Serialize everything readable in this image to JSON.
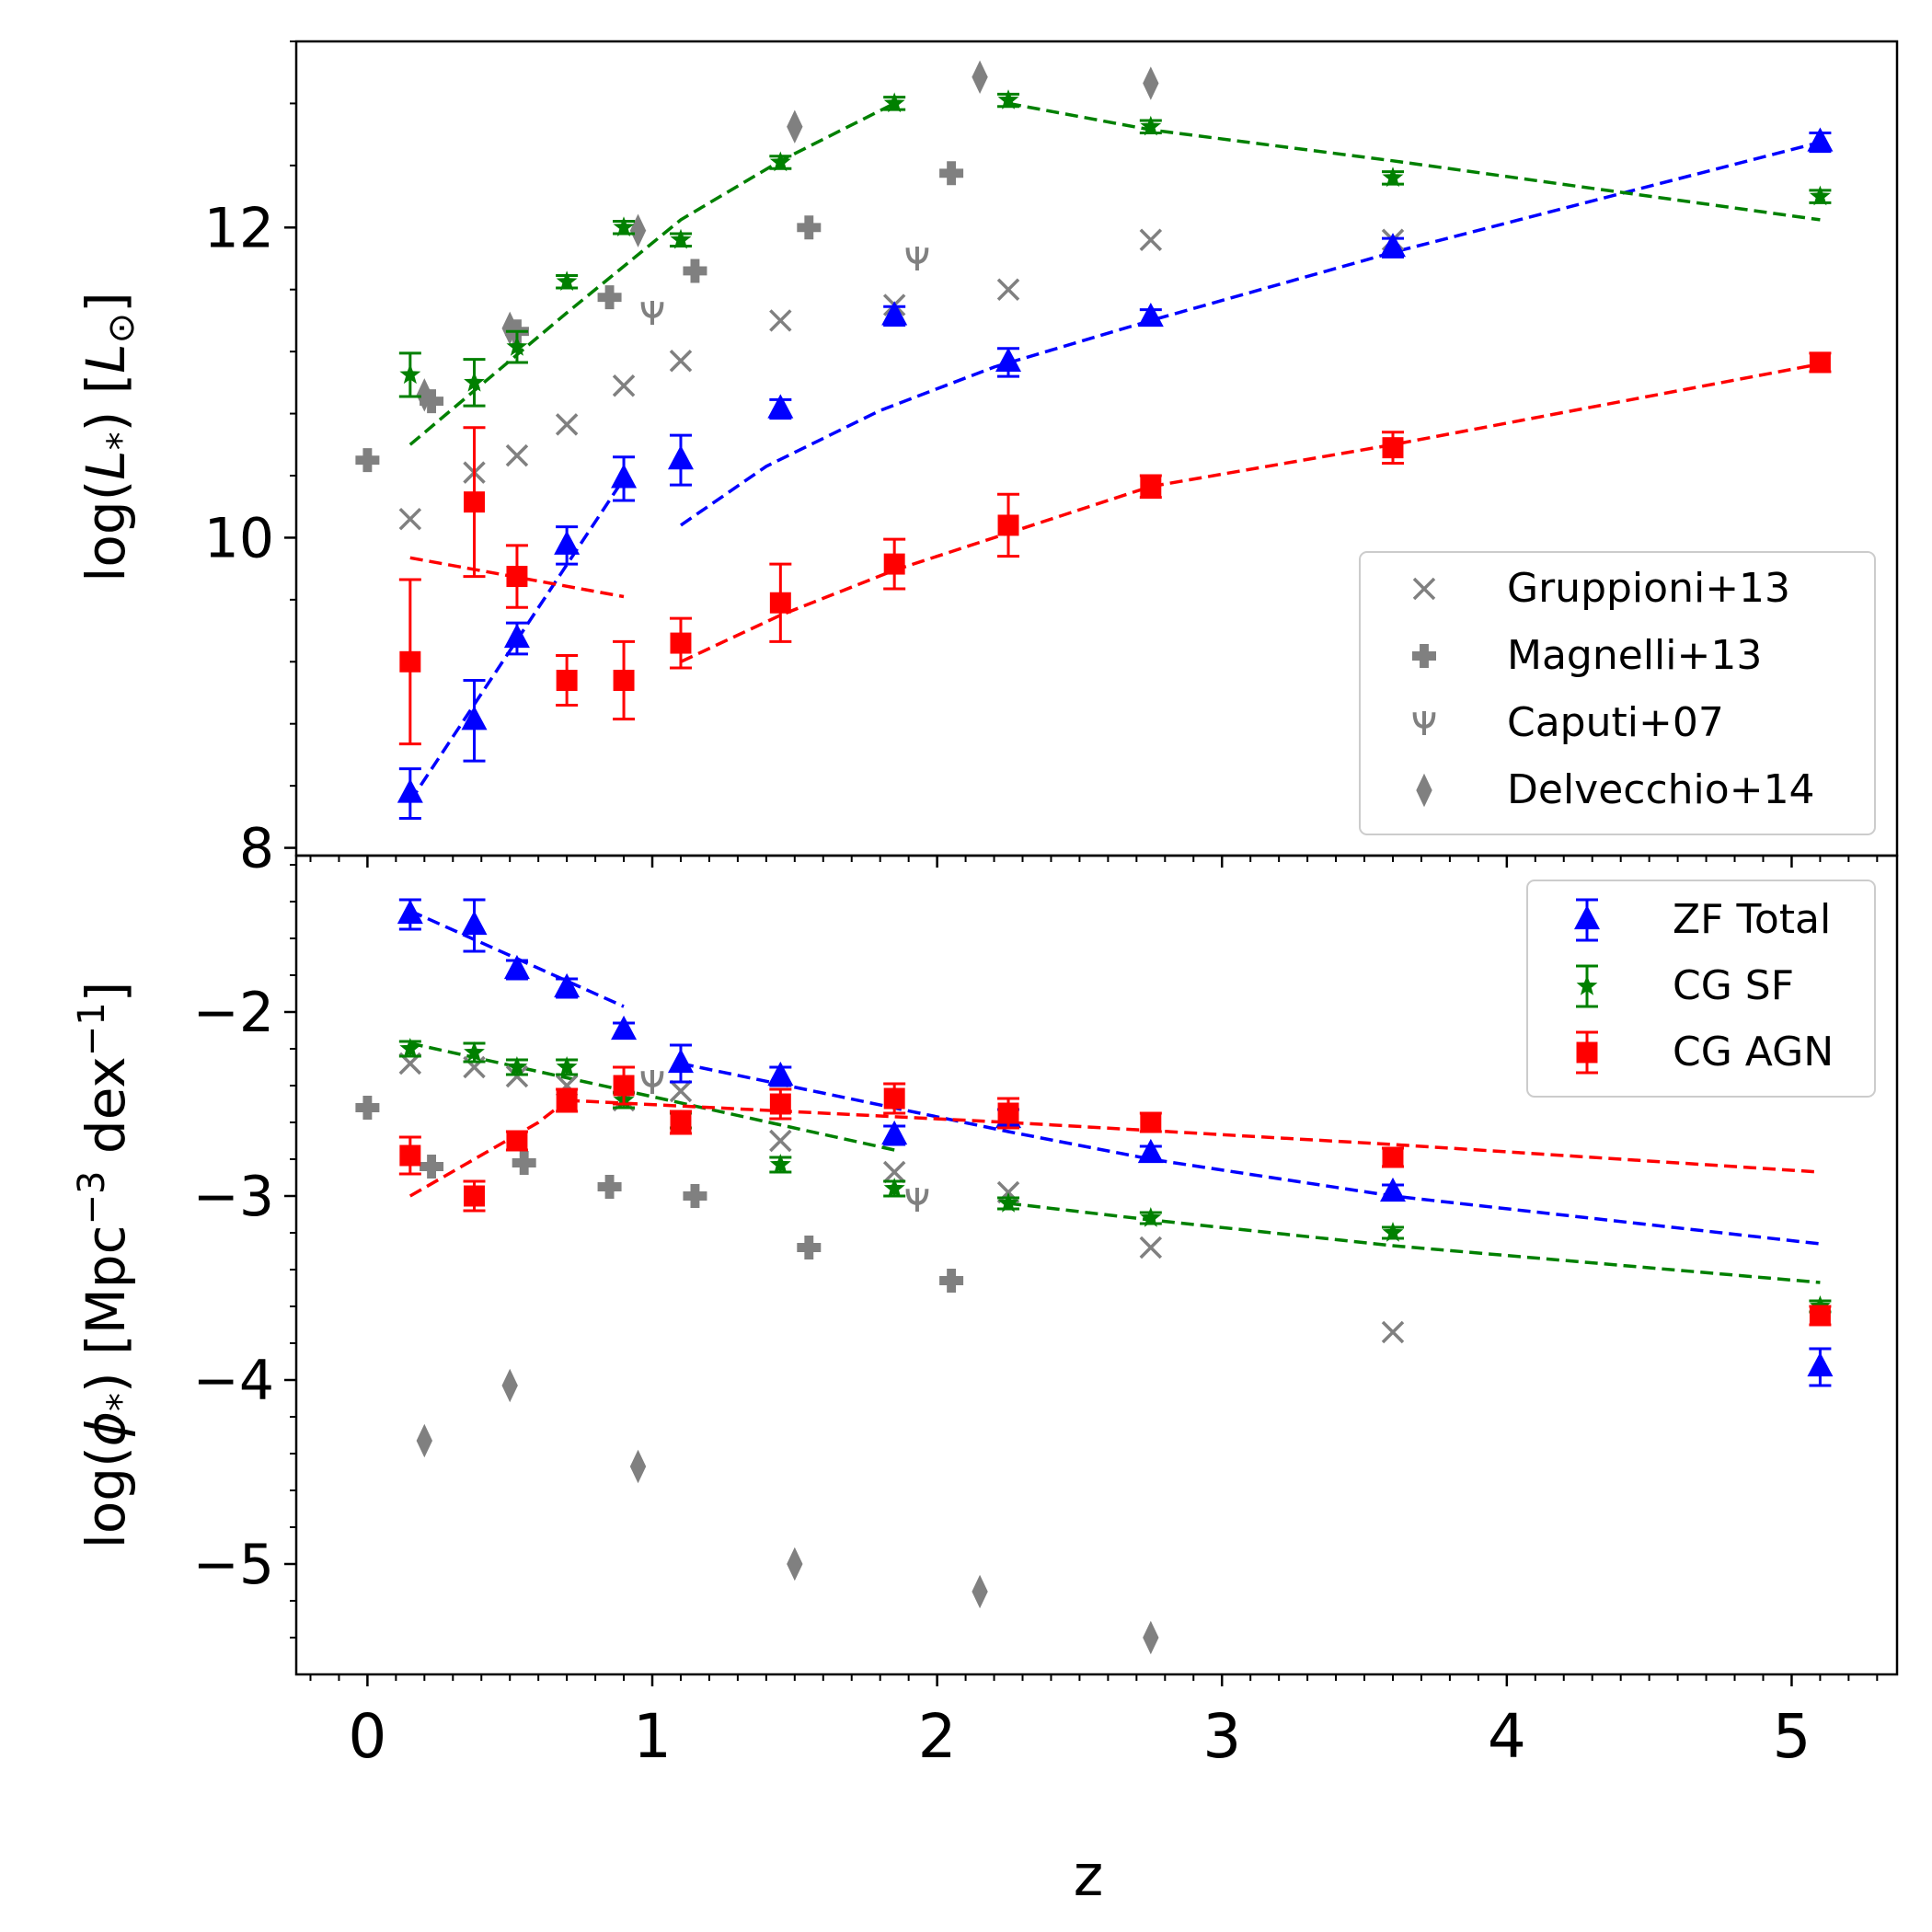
{
  "chart_data": [
    {
      "type": "scatter",
      "panel": "top",
      "xlabel": "",
      "ylabel_parts": [
        "log(",
        "L",
        "*",
        ") [",
        "L",
        "⊙",
        "]"
      ],
      "xlim": [
        -0.25,
        5.37
      ],
      "ylim": [
        7.95,
        13.2
      ],
      "yticks": [
        8,
        10,
        12
      ],
      "yticklabels": [
        "8",
        "10",
        "12"
      ],
      "legend": {
        "placement": "lower-right",
        "entries": [
          {
            "label": "Gruppioni+13",
            "marker": "x",
            "color": "#808080"
          },
          {
            "label": "Magnelli+13",
            "marker": "plus",
            "color": "#808080"
          },
          {
            "label": "Caputi+07",
            "marker": "psi",
            "color": "#808080"
          },
          {
            "label": "Delvecchio+14",
            "marker": "diamond",
            "color": "#808080"
          }
        ]
      },
      "series": [
        {
          "name": "Gruppioni+13",
          "marker": "x",
          "color": "#808080",
          "points": [
            [
              0.15,
              10.12
            ],
            [
              0.375,
              10.42
            ],
            [
              0.525,
              10.53
            ],
            [
              0.7,
              10.73
            ],
            [
              0.9,
              10.98
            ],
            [
              1.1,
              11.14
            ],
            [
              1.45,
              11.4
            ],
            [
              1.85,
              11.5
            ],
            [
              2.25,
              11.6
            ],
            [
              2.75,
              11.92
            ],
            [
              3.6,
              11.92
            ]
          ]
        },
        {
          "name": "Magnelli+13",
          "marker": "plus",
          "color": "#808080",
          "points": [
            [
              0.0,
              10.5
            ],
            [
              0.225,
              10.88
            ],
            [
              0.525,
              11.33
            ],
            [
              0.85,
              11.55
            ],
            [
              1.15,
              11.72
            ],
            [
              1.55,
              12.0
            ],
            [
              2.05,
              12.35
            ]
          ]
        },
        {
          "name": "Caputi+07",
          "marker": "psi",
          "color": "#808080",
          "points": [
            [
              1.0,
              11.45
            ],
            [
              1.93,
              11.8
            ]
          ]
        },
        {
          "name": "Delvecchio+14",
          "marker": "diamond",
          "color": "#808080",
          "points": [
            [
              0.2,
              10.92
            ],
            [
              0.5,
              11.35
            ],
            [
              0.95,
              11.98
            ],
            [
              1.5,
              12.65
            ],
            [
              2.15,
              12.97
            ],
            [
              2.75,
              12.93
            ]
          ]
        },
        {
          "name": "ZF Total",
          "marker": "triangle",
          "color": "#0000ff",
          "points": [
            [
              0.15,
              8.35,
              0.16
            ],
            [
              0.375,
              8.82,
              0.26
            ],
            [
              0.525,
              9.35,
              0.1
            ],
            [
              0.7,
              9.95,
              0.12
            ],
            [
              0.9,
              10.38,
              0.14
            ],
            [
              1.1,
              10.5,
              0.16
            ],
            [
              1.45,
              10.83,
              0.06
            ],
            [
              1.85,
              11.43,
              0.06
            ],
            [
              2.25,
              11.13,
              0.09
            ],
            [
              2.75,
              11.42,
              0.05
            ],
            [
              3.6,
              11.87,
              0.06
            ],
            [
              5.1,
              12.55,
              0.06
            ]
          ],
          "fits": [
            {
              "x": [
                0.15,
                0.9
              ],
              "y": [
                8.3,
                10.38
              ]
            },
            {
              "x": [
                1.1,
                1.4,
                1.8,
                2.2,
                2.75,
                3.6,
                5.1
              ],
              "y": [
                10.08,
                10.46,
                10.82,
                11.1,
                11.4,
                11.84,
                12.55
              ]
            }
          ]
        },
        {
          "name": "CG SF",
          "marker": "star",
          "color": "#008000",
          "points": [
            [
              0.15,
              11.05,
              0.14
            ],
            [
              0.375,
              11.0,
              0.15
            ],
            [
              0.525,
              11.23,
              0.1
            ],
            [
              0.7,
              11.65,
              0.04
            ],
            [
              0.9,
              12.0,
              0.04
            ],
            [
              1.1,
              11.92,
              0.04
            ],
            [
              1.45,
              12.42,
              0.04
            ],
            [
              1.85,
              12.8,
              0.04
            ],
            [
              2.25,
              12.82,
              0.04
            ],
            [
              2.75,
              12.65,
              0.04
            ],
            [
              3.6,
              12.32,
              0.04
            ],
            [
              5.1,
              12.2,
              0.04
            ]
          ],
          "fits": [
            {
              "x": [
                0.15,
                0.7,
                1.1,
                1.45,
                1.85
              ],
              "y": [
                10.6,
                11.45,
                12.05,
                12.43,
                12.8
              ]
            },
            {
              "x": [
                2.25,
                2.75,
                3.6,
                5.1
              ],
              "y": [
                12.8,
                12.63,
                12.43,
                12.05
              ]
            }
          ]
        },
        {
          "name": "CG AGN",
          "marker": "square",
          "color": "#ff0000",
          "points": [
            [
              0.15,
              9.2,
              0.53
            ],
            [
              0.375,
              10.23,
              0.48
            ],
            [
              0.525,
              9.75,
              0.2
            ],
            [
              0.7,
              9.08,
              0.16
            ],
            [
              0.9,
              9.08,
              0.25
            ],
            [
              1.1,
              9.32,
              0.16
            ],
            [
              1.45,
              9.58,
              0.25
            ],
            [
              1.85,
              9.83,
              0.16
            ],
            [
              2.25,
              10.08,
              0.2
            ],
            [
              2.75,
              10.33,
              0.07
            ],
            [
              3.6,
              10.58,
              0.1
            ],
            [
              5.1,
              11.13,
              0.06
            ]
          ],
          "fits": [
            {
              "x": [
                0.15,
                0.9
              ],
              "y": [
                9.87,
                9.62
              ]
            },
            {
              "x": [
                1.1,
                1.45,
                1.85,
                2.25,
                2.75,
                3.6,
                5.1
              ],
              "y": [
                9.2,
                9.5,
                9.79,
                10.03,
                10.33,
                10.6,
                11.12
              ]
            }
          ]
        }
      ]
    },
    {
      "type": "scatter",
      "panel": "bottom",
      "xlabel": "z",
      "ylabel_parts": [
        "log(",
        "ϕ",
        "*",
        ") [Mpc",
        "−3",
        " dex",
        "−1",
        "]"
      ],
      "xlim": [
        -0.25,
        5.37
      ],
      "ylim": [
        -5.6,
        -1.15
      ],
      "xticks": [
        0,
        1,
        2,
        3,
        4,
        5
      ],
      "xticklabels": [
        "0",
        "1",
        "2",
        "3",
        "4",
        "5"
      ],
      "yticks": [
        -5,
        -4,
        -3,
        -2
      ],
      "yticklabels": [
        "−5",
        "−4",
        "−3",
        "−2"
      ],
      "legend": {
        "placement": "top-right",
        "entries": [
          {
            "label": "ZF Total",
            "marker": "triangle",
            "color": "#0000ff"
          },
          {
            "label": "CG SF",
            "marker": "star",
            "color": "#008000"
          },
          {
            "label": "CG AGN",
            "marker": "square",
            "color": "#ff0000"
          }
        ]
      },
      "series": [
        {
          "name": "Gruppioni+13",
          "marker": "x",
          "color": "#808080",
          "points": [
            [
              0.15,
              -2.28
            ],
            [
              0.375,
              -2.3
            ],
            [
              0.525,
              -2.35
            ],
            [
              0.7,
              -2.4
            ],
            [
              0.9,
              -2.48
            ],
            [
              1.1,
              -2.43
            ],
            [
              1.45,
              -2.7
            ],
            [
              1.85,
              -2.87
            ],
            [
              2.25,
              -2.98
            ],
            [
              2.75,
              -3.28
            ],
            [
              3.6,
              -3.74
            ]
          ]
        },
        {
          "name": "Magnelli+13",
          "marker": "plus",
          "color": "#808080",
          "points": [
            [
              0.0,
              -2.52
            ],
            [
              0.225,
              -2.84
            ],
            [
              0.55,
              -2.82
            ],
            [
              0.85,
              -2.95
            ],
            [
              1.15,
              -3.0
            ],
            [
              1.55,
              -3.28
            ],
            [
              2.05,
              -3.46
            ]
          ]
        },
        {
          "name": "Caputi+07",
          "marker": "psi",
          "color": "#808080",
          "points": [
            [
              1.0,
              -2.38
            ],
            [
              1.93,
              -3.02
            ]
          ]
        },
        {
          "name": "Delvecchio+14",
          "marker": "diamond",
          "color": "#808080",
          "points": [
            [
              0.2,
              -4.33
            ],
            [
              0.5,
              -4.03
            ],
            [
              0.95,
              -4.47
            ],
            [
              1.5,
              -5.0
            ],
            [
              2.15,
              -5.15
            ],
            [
              2.75,
              -5.4
            ]
          ]
        },
        {
          "name": "ZF Total",
          "marker": "triangle",
          "color": "#0000ff",
          "points": [
            [
              0.15,
              -1.47,
              0.08
            ],
            [
              0.375,
              -1.53,
              0.14
            ],
            [
              0.525,
              -1.77,
              0.05
            ],
            [
              0.7,
              -1.87,
              0.05
            ],
            [
              0.9,
              -2.1,
              0.04
            ],
            [
              1.1,
              -2.28,
              0.1
            ],
            [
              1.45,
              -2.35,
              0.05
            ],
            [
              1.85,
              -2.67,
              0.05
            ],
            [
              2.25,
              -2.58,
              0.05
            ],
            [
              2.75,
              -2.77,
              0.04
            ],
            [
              3.6,
              -2.98,
              0.04
            ],
            [
              5.1,
              -3.93,
              0.1
            ]
          ],
          "fits": [
            {
              "x": [
                0.15,
                0.9
              ],
              "y": [
                -1.45,
                -1.97
              ]
            },
            {
              "x": [
                1.1,
                2.25,
                2.75,
                3.6,
                5.1
              ],
              "y": [
                -2.28,
                -2.65,
                -2.8,
                -3.0,
                -3.26
              ]
            }
          ]
        },
        {
          "name": "CG SF",
          "marker": "star",
          "color": "#008000",
          "points": [
            [
              0.15,
              -2.2,
              0.04
            ],
            [
              0.375,
              -2.22,
              0.05
            ],
            [
              0.525,
              -2.3,
              0.04
            ],
            [
              0.7,
              -2.3,
              0.04
            ],
            [
              0.9,
              -2.48,
              0.04
            ],
            [
              1.1,
              -2.59,
              0.04
            ],
            [
              1.45,
              -2.83,
              0.04
            ],
            [
              1.85,
              -2.96,
              0.04
            ],
            [
              2.25,
              -3.04,
              0.03
            ],
            [
              2.75,
              -3.12,
              0.03
            ],
            [
              3.6,
              -3.2,
              0.03
            ],
            [
              5.1,
              -3.6,
              0.03
            ]
          ],
          "fits": [
            {
              "x": [
                0.15,
                1.85
              ],
              "y": [
                -2.17,
                -2.75
              ]
            },
            {
              "x": [
                2.25,
                2.75,
                3.6,
                5.1
              ],
              "y": [
                -3.04,
                -3.13,
                -3.27,
                -3.47
              ]
            }
          ]
        },
        {
          "name": "CG AGN",
          "marker": "square",
          "color": "#ff0000",
          "points": [
            [
              0.15,
              -2.78,
              0.1
            ],
            [
              0.375,
              -3.0,
              0.08
            ],
            [
              0.525,
              -2.7,
              0.05
            ],
            [
              0.7,
              -2.48,
              0.06
            ],
            [
              0.9,
              -2.4,
              0.1
            ],
            [
              1.1,
              -2.6,
              0.06
            ],
            [
              1.45,
              -2.5,
              0.08
            ],
            [
              1.85,
              -2.47,
              0.08
            ],
            [
              2.25,
              -2.55,
              0.08
            ],
            [
              2.75,
              -2.6,
              0.05
            ],
            [
              3.6,
              -2.79,
              0.05
            ],
            [
              5.1,
              -3.65,
              0.05
            ]
          ],
          "fits": [
            {
              "x": [
                0.15,
                0.6,
                0.7
              ],
              "y": [
                -3.0,
                -2.6,
                -2.48
              ]
            },
            {
              "x": [
                0.7,
                2.25,
                3.6,
                5.1
              ],
              "y": [
                -2.48,
                -2.6,
                -2.72,
                -2.87
              ]
            }
          ]
        }
      ]
    }
  ]
}
